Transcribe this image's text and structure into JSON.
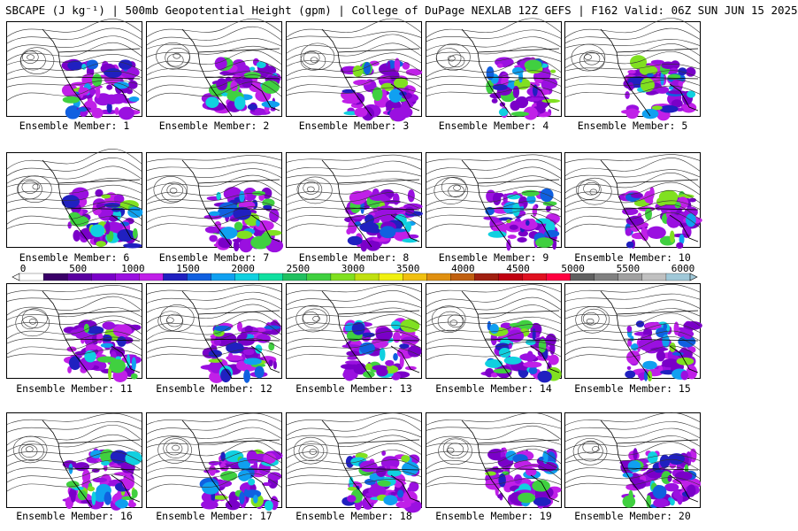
{
  "title": "SBCAPE (J kg⁻¹) | 500mb Geopotential Height (gpm) | College of DuPage NEXLAB 12Z GEFS | F162 Valid: 06Z SUN JUN 15 2025",
  "members": [
    {
      "label": "Ensemble Member: 1"
    },
    {
      "label": "Ensemble Member: 2"
    },
    {
      "label": "Ensemble Member: 3"
    },
    {
      "label": "Ensemble Member: 4"
    },
    {
      "label": "Ensemble Member: 5"
    },
    {
      "label": "Ensemble Member: 6"
    },
    {
      "label": "Ensemble Member: 7"
    },
    {
      "label": "Ensemble Member: 8"
    },
    {
      "label": "Ensemble Member: 9"
    },
    {
      "label": "Ensemble Member: 10"
    },
    {
      "label": "Ensemble Member: 11"
    },
    {
      "label": "Ensemble Member: 12"
    },
    {
      "label": "Ensemble Member: 13"
    },
    {
      "label": "Ensemble Member: 14"
    },
    {
      "label": "Ensemble Member: 15"
    },
    {
      "label": "Ensemble Member: 16"
    },
    {
      "label": "Ensemble Member: 17"
    },
    {
      "label": "Ensemble Member: 18"
    },
    {
      "label": "Ensemble Member: 19"
    },
    {
      "label": "Ensemble Member: 20"
    }
  ],
  "colorbar": {
    "ticks": [
      "0",
      "500",
      "1000",
      "1500",
      "2000",
      "2500",
      "3000",
      "3500",
      "4000",
      "4500",
      "5000",
      "5500",
      "6000"
    ],
    "colors": [
      "#ffffff",
      "#3a0068",
      "#5a00a0",
      "#7a00c8",
      "#9a10e0",
      "#c020e8",
      "#2020c0",
      "#1060e0",
      "#10a0f0",
      "#10d0e0",
      "#10e0a0",
      "#20c060",
      "#40d040",
      "#80e020",
      "#c0e010",
      "#f0f010",
      "#f0c010",
      "#e09010",
      "#c06010",
      "#a02010",
      "#c00010",
      "#e01020",
      "#ff0040",
      "#606060",
      "#808080",
      "#a0a0a0",
      "#c0c0c0",
      "#a0c8d8"
    ]
  }
}
